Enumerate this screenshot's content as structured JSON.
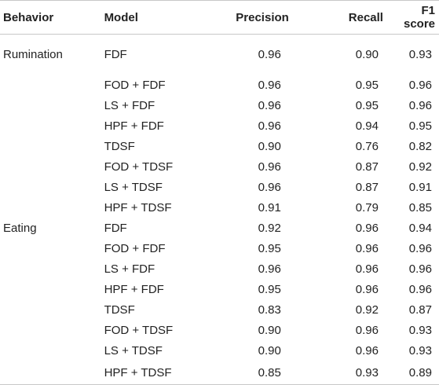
{
  "table": {
    "headers": {
      "behavior": "Behavior",
      "model": "Model",
      "precision": "Precision",
      "recall": "Recall",
      "f1": "F1 score"
    },
    "rows": [
      {
        "behavior": "Rumination",
        "model": "FDF",
        "precision": "0.96",
        "recall": "0.90",
        "f1": "0.93"
      },
      {
        "behavior": "",
        "model": "FOD + FDF",
        "precision": "0.96",
        "recall": "0.95",
        "f1": "0.96"
      },
      {
        "behavior": "",
        "model": "LS + FDF",
        "precision": "0.96",
        "recall": "0.95",
        "f1": "0.96"
      },
      {
        "behavior": "",
        "model": "HPF + FDF",
        "precision": "0.96",
        "recall": "0.94",
        "f1": "0.95"
      },
      {
        "behavior": "",
        "model": "TDSF",
        "precision": "0.90",
        "recall": "0.76",
        "f1": "0.82"
      },
      {
        "behavior": "",
        "model": "FOD + TDSF",
        "precision": "0.96",
        "recall": "0.87",
        "f1": "0.92"
      },
      {
        "behavior": "",
        "model": "LS + TDSF",
        "precision": "0.96",
        "recall": "0.87",
        "f1": "0.91"
      },
      {
        "behavior": "",
        "model": "HPF + TDSF",
        "precision": "0.91",
        "recall": "0.79",
        "f1": "0.85"
      },
      {
        "behavior": "Eating",
        "model": "FDF",
        "precision": "0.92",
        "recall": "0.96",
        "f1": "0.94"
      },
      {
        "behavior": "",
        "model": "FOD + FDF",
        "precision": "0.95",
        "recall": "0.96",
        "f1": "0.96"
      },
      {
        "behavior": "",
        "model": "LS + FDF",
        "precision": "0.96",
        "recall": "0.96",
        "f1": "0.96"
      },
      {
        "behavior": "",
        "model": "HPF + FDF",
        "precision": "0.95",
        "recall": "0.96",
        "f1": "0.96"
      },
      {
        "behavior": "",
        "model": "TDSF",
        "precision": "0.83",
        "recall": "0.92",
        "f1": "0.87"
      },
      {
        "behavior": "",
        "model": "FOD + TDSF",
        "precision": "0.90",
        "recall": "0.96",
        "f1": "0.93"
      },
      {
        "behavior": "",
        "model": "LS + TDSF",
        "precision": "0.90",
        "recall": "0.96",
        "f1": "0.93"
      },
      {
        "behavior": "",
        "model": "HPF + TDSF",
        "precision": "0.85",
        "recall": "0.93",
        "f1": "0.89"
      }
    ]
  }
}
